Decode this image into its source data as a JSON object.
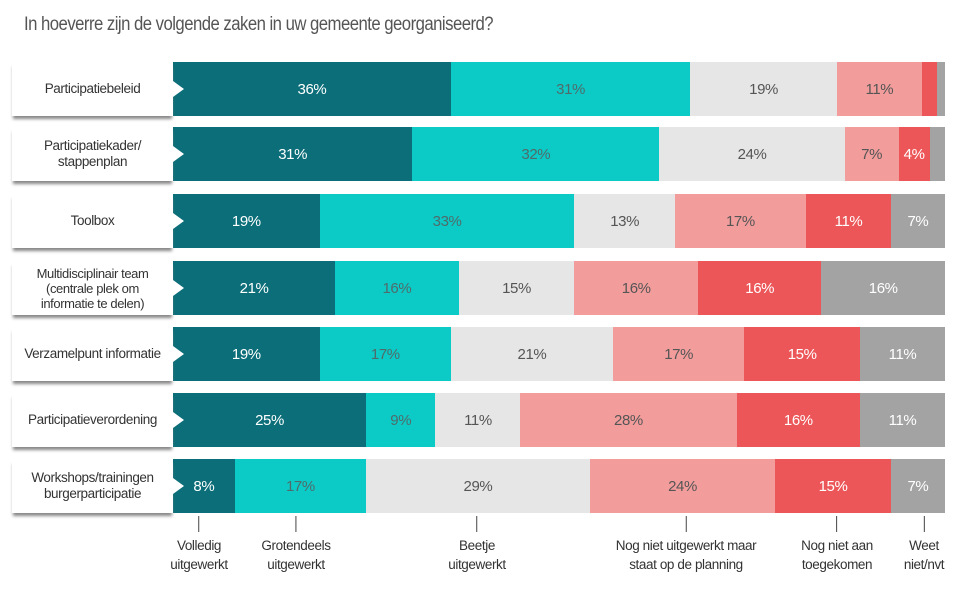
{
  "title": "In hoeverre zijn de volgende zaken in uw gemeente georganiseerd?",
  "chart_data": {
    "type": "bar",
    "orientation": "horizontal",
    "stacked": true,
    "title": "In hoeverre zijn de volgende zaken in uw gemeente georganiseerd?",
    "unit": "%",
    "categories": [
      "Participatiebeleid",
      "Participatiekader/ stappenplan",
      "Toolbox",
      "Multidisciplinair team (centrale plek om informatie te delen)",
      "Verzamelpunt informatie",
      "Participatieverordening",
      "Workshops/trainingen burgerparticipatie"
    ],
    "series": [
      {
        "name": "Volledig uitgewerkt",
        "color": "#0b6e78",
        "text_color": "#ffffff",
        "values": [
          36,
          31,
          19,
          21,
          19,
          25,
          8
        ]
      },
      {
        "name": "Grotendeels uitgewerkt",
        "color": "#0ccbc6",
        "text_color": "#4f6b6b",
        "values": [
          31,
          32,
          33,
          16,
          17,
          9,
          17
        ]
      },
      {
        "name": "Beetje uitgewerkt",
        "color": "#e6e6e6",
        "text_color": "#555555",
        "values": [
          19,
          24,
          13,
          15,
          21,
          11,
          29
        ]
      },
      {
        "name": "Nog niet uitgewerkt maar staat op de planning",
        "color": "#f29d9c",
        "text_color": "#555555",
        "values": [
          11,
          7,
          17,
          16,
          17,
          28,
          24
        ]
      },
      {
        "name": "Nog niet aan toegekomen",
        "color": "#ec5658",
        "text_color": "#ffffff",
        "values": [
          2,
          4,
          11,
          16,
          15,
          16,
          15
        ]
      },
      {
        "name": "Weet niet/nvt",
        "color": "#a3a3a3",
        "text_color": "#ffffff",
        "values": [
          1,
          2,
          7,
          16,
          11,
          11,
          7
        ]
      }
    ],
    "labels": [
      [
        "36%",
        "31%",
        "19%",
        "11%",
        "",
        ""
      ],
      [
        "31%",
        "32%",
        "24%",
        "7%",
        "4%",
        ""
      ],
      [
        "19%",
        "33%",
        "13%",
        "17%",
        "11%",
        "7%"
      ],
      [
        "21%",
        "16%",
        "15%",
        "16%",
        "16%",
        "16%"
      ],
      [
        "19%",
        "17%",
        "21%",
        "17%",
        "15%",
        "11%"
      ],
      [
        "25%",
        "9%",
        "11%",
        "28%",
        "16%",
        "11%"
      ],
      [
        "8%",
        "17%",
        "29%",
        "24%",
        "15%",
        "7%"
      ]
    ],
    "legend": [
      "Volledig\nuitgewerkt",
      "Grotendeels\nuitgewerkt",
      "Beetje\nuitgewerkt",
      "Nog niet uitgewerkt maar\nstaat op de planning",
      "Nog niet aan\ntoegekomen",
      "Weet\nniet/nvt"
    ],
    "legend_placement": "bottom",
    "grid": false
  }
}
